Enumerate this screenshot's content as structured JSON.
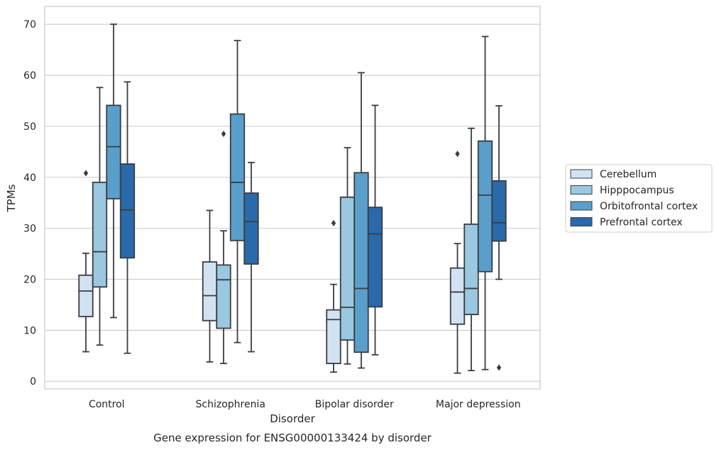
{
  "chart_data": {
    "type": "boxplot",
    "caption": "Gene expression for ENSG00000133424 by disorder",
    "xlabel": "Disorder",
    "ylabel": "TPMs",
    "ylim": [
      -1.5,
      73.5
    ],
    "yticks": [
      0,
      10,
      20,
      30,
      40,
      50,
      60,
      70
    ],
    "grid": true,
    "legend_position": "right",
    "categories": [
      "Control",
      "Schizophrenia",
      "Bipolar disorder",
      "Major depression"
    ],
    "series": [
      {
        "name": "Cerebellum",
        "color": "#d2e2f2",
        "boxes": [
          {
            "whisker_low": 5.8,
            "q1": 12.7,
            "median": 17.7,
            "q3": 20.8,
            "whisker_high": 25.1,
            "outliers": [
              40.8
            ]
          },
          {
            "whisker_low": 3.8,
            "q1": 11.9,
            "median": 16.8,
            "q3": 23.4,
            "whisker_high": 33.5,
            "outliers": []
          },
          {
            "whisker_low": 1.8,
            "q1": 3.5,
            "median": 12.1,
            "q3": 14.0,
            "whisker_high": 19.0,
            "outliers": [
              31.0
            ]
          },
          {
            "whisker_low": 1.6,
            "q1": 11.2,
            "median": 17.5,
            "q3": 22.2,
            "whisker_high": 27.0,
            "outliers": [
              44.6
            ]
          }
        ]
      },
      {
        "name": "Hipppocampus",
        "color": "#9ac8e0",
        "boxes": [
          {
            "whisker_low": 7.1,
            "q1": 18.5,
            "median": 25.4,
            "q3": 39.0,
            "whisker_high": 57.6,
            "outliers": []
          },
          {
            "whisker_low": 3.5,
            "q1": 10.4,
            "median": 19.9,
            "q3": 22.8,
            "whisker_high": 29.5,
            "outliers": [
              48.5
            ]
          },
          {
            "whisker_low": 3.4,
            "q1": 8.1,
            "median": 14.5,
            "q3": 36.1,
            "whisker_high": 45.8,
            "outliers": []
          },
          {
            "whisker_low": 2.1,
            "q1": 13.1,
            "median": 18.2,
            "q3": 30.8,
            "whisker_high": 49.6,
            "outliers": []
          }
        ]
      },
      {
        "name": "Orbitofrontal cortex",
        "color": "#5a9fcc",
        "boxes": [
          {
            "whisker_low": 12.5,
            "q1": 35.8,
            "median": 46.0,
            "q3": 54.1,
            "whisker_high": 70.0,
            "outliers": []
          },
          {
            "whisker_low": 7.6,
            "q1": 27.6,
            "median": 39.0,
            "q3": 52.4,
            "whisker_high": 66.8,
            "outliers": []
          },
          {
            "whisker_low": 2.6,
            "q1": 5.7,
            "median": 18.2,
            "q3": 40.9,
            "whisker_high": 60.5,
            "outliers": []
          },
          {
            "whisker_low": 2.3,
            "q1": 21.5,
            "median": 36.5,
            "q3": 47.1,
            "whisker_high": 67.6,
            "outliers": []
          }
        ]
      },
      {
        "name": "Prefrontal cortex",
        "color": "#2a6aaa",
        "boxes": [
          {
            "whisker_low": 5.5,
            "q1": 24.2,
            "median": 33.6,
            "q3": 42.6,
            "whisker_high": 58.7,
            "outliers": []
          },
          {
            "whisker_low": 5.8,
            "q1": 23.0,
            "median": 31.3,
            "q3": 36.9,
            "whisker_high": 42.9,
            "outliers": []
          },
          {
            "whisker_low": 5.2,
            "q1": 14.6,
            "median": 28.9,
            "q3": 34.1,
            "whisker_high": 54.1,
            "outliers": []
          },
          {
            "whisker_low": 20.0,
            "q1": 27.5,
            "median": 31.1,
            "q3": 39.3,
            "whisker_high": 54.0,
            "outliers": [
              2.7
            ]
          }
        ]
      }
    ]
  }
}
